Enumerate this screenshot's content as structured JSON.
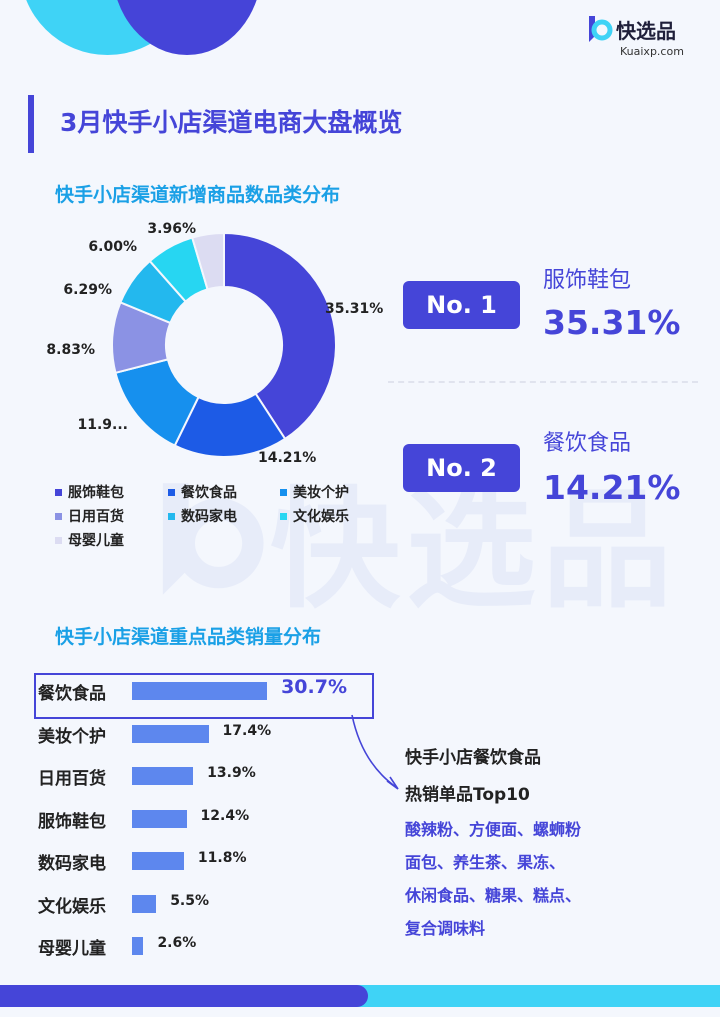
{
  "brand": {
    "name": "快选品",
    "url": "Kuaixp.com",
    "watermark": "快选品"
  },
  "main_title": "3月快手小店渠道电商大盘概览",
  "section1_title": "快手小店渠道新增商品数品类分布",
  "section2_title": "快手小店渠道重点品类销量分布",
  "colors": {
    "accent": "#4545d8",
    "cyan": "#3fd3f6",
    "bar": "#5d87ee",
    "heading": "#1aa0e6"
  },
  "chart_data": [
    {
      "type": "pie",
      "variant": "donut",
      "title": "快手小店渠道新增商品数品类分布",
      "categories": [
        "服饰鞋包",
        "餐饮食品",
        "美妆个护",
        "日用百货",
        "数码家电",
        "文化娱乐",
        "母婴儿童"
      ],
      "values": [
        35.31,
        14.21,
        11.9,
        8.83,
        6.29,
        6.0,
        3.96
      ],
      "labels": [
        "35.31%",
        "14.21%",
        "11.9...",
        "8.83%",
        "6.29%",
        "6.00%",
        "3.96%"
      ],
      "colors": [
        "#4545d8",
        "#1d5be6",
        "#1690ee",
        "#8b92e4",
        "#23b8ee",
        "#27d6f2",
        "#dcdcf2"
      ],
      "legend_position": "bottom"
    },
    {
      "type": "bar",
      "orientation": "horizontal",
      "title": "快手小店渠道重点品类销量分布",
      "categories": [
        "餐饮食品",
        "美妆个护",
        "日用百货",
        "服饰鞋包",
        "数码家电",
        "文化娱乐",
        "母婴儿童"
      ],
      "values": [
        30.7,
        17.4,
        13.9,
        12.4,
        11.8,
        5.5,
        2.6
      ],
      "labels": [
        "30.7%",
        "17.4%",
        "13.9%",
        "12.4%",
        "11.8%",
        "5.5%",
        "2.6%"
      ],
      "highlight": "餐饮食品"
    }
  ],
  "rank": [
    {
      "badge": "No. 1",
      "category": "服饰鞋包",
      "value": "35.31%"
    },
    {
      "badge": "No. 2",
      "category": "餐饮食品",
      "value": "14.21%"
    }
  ],
  "hot": {
    "title1": "快手小店餐饮食品",
    "title2": "热销单品Top10",
    "lines": [
      "酸辣粉、方便面、螺蛳粉",
      "面包、养生茶、果冻、",
      "休闲食品、糖果、糕点、",
      "复合调味料"
    ]
  }
}
